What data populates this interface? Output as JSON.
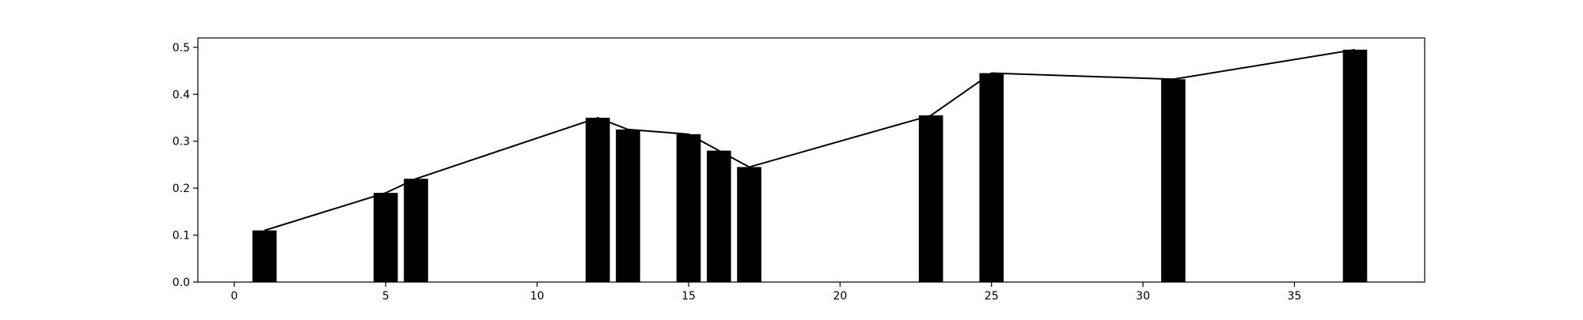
{
  "chart_data": {
    "type": "bar",
    "title": "",
    "xlabel": "",
    "ylabel": "",
    "xlim": [
      -1.2,
      39.3
    ],
    "ylim": [
      0,
      0.52
    ],
    "grid": false,
    "x_ticks": [
      0,
      5,
      10,
      15,
      20,
      25,
      30,
      35
    ],
    "y_ticks": [
      0.0,
      0.1,
      0.2,
      0.3,
      0.4,
      0.5
    ],
    "x_tick_labels": [
      "0",
      "5",
      "10",
      "15",
      "20",
      "25",
      "30",
      "35"
    ],
    "y_tick_labels": [
      "0.0",
      "0.1",
      "0.2",
      "0.3",
      "0.4",
      "0.5"
    ],
    "bar_width": 0.8,
    "bar_color": "#000000",
    "line_color": "#000000",
    "x": [
      1,
      5,
      6,
      12,
      13,
      15,
      16,
      17,
      23,
      25,
      31,
      37
    ],
    "values": [
      0.11,
      0.19,
      0.22,
      0.35,
      0.325,
      0.315,
      0.28,
      0.245,
      0.355,
      0.445,
      0.432,
      0.495
    ],
    "series": [
      {
        "type": "bar"
      },
      {
        "type": "line"
      }
    ]
  }
}
